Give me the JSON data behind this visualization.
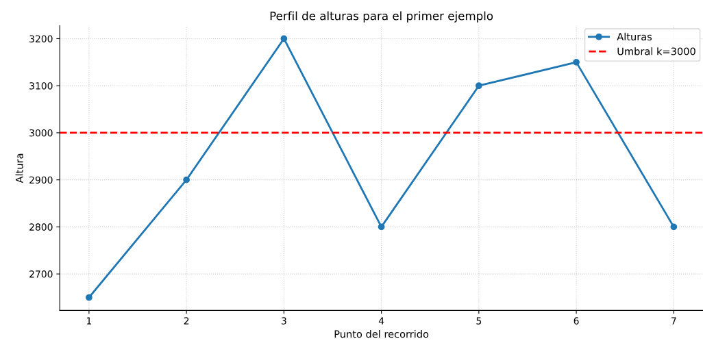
{
  "chart_data": {
    "type": "line",
    "title": "Perfil de alturas para el primer ejemplo",
    "xlabel": "Punto del recorrido",
    "ylabel": "Altura",
    "x": [
      1,
      2,
      3,
      4,
      5,
      6,
      7
    ],
    "series": [
      {
        "name": "Alturas",
        "color": "#1f77b4",
        "values": [
          2650,
          2900,
          3200,
          2800,
          3100,
          3150,
          2800
        ]
      }
    ],
    "xlim": [
      0.7,
      7.3
    ],
    "xticks": [
      1,
      2,
      3,
      4,
      5,
      6,
      7
    ],
    "ylim": [
      2622.5,
      3227.5
    ],
    "yticks": [
      2700,
      2800,
      2900,
      3000,
      3100,
      3200
    ],
    "ref_lines": [
      {
        "axis": "y",
        "value": 3000,
        "label": "Umbral k=3000",
        "color": "#ff0000",
        "line_style": "dashed"
      }
    ],
    "grid": true,
    "legend": "top right",
    "marker": "circle",
    "line_style": "solid"
  }
}
